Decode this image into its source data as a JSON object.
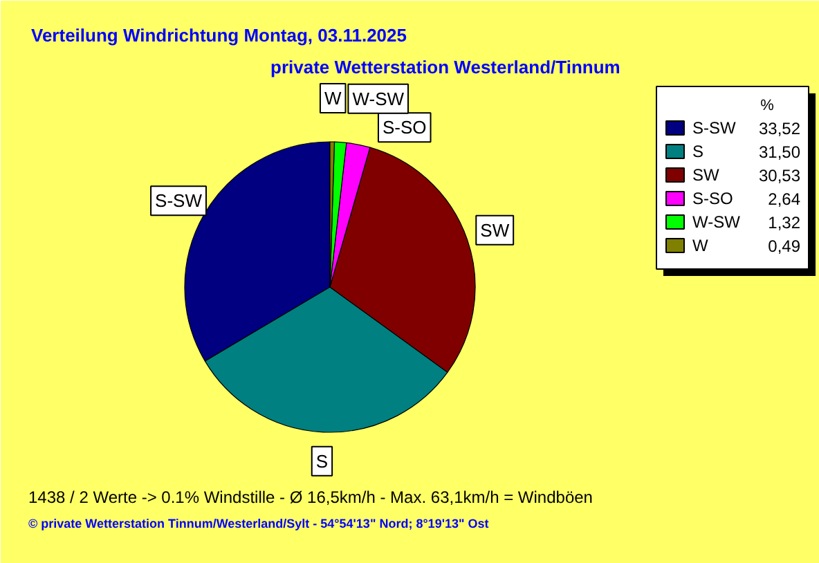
{
  "chart_data": {
    "type": "pie",
    "title": "Verteilung Windrichtung   Montag, 03.11.2025",
    "subtitle": "private Wetterstation Westerland/Tinnum",
    "categories": [
      "S-SW",
      "S",
      "SW",
      "S-SO",
      "W-SW",
      "W"
    ],
    "values": [
      33.52,
      31.5,
      30.53,
      2.64,
      1.32,
      0.49
    ],
    "value_labels": [
      "33,52",
      "31,50",
      "30,53",
      "2,64",
      "1,32",
      "0,49"
    ],
    "colors": [
      "#000080",
      "#008080",
      "#800000",
      "#ff00ff",
      "#00ff00",
      "#808000"
    ],
    "legend": "top right",
    "legend_title": "%",
    "annotations": [
      "1438 / 2 Werte  -> 0.1% Windstille   -   Ø 16,5km/h  -  Max. 63,1km/h = Windböen",
      "© private Wetterstation Tinnum/Westerland/Sylt  -  54°54'13\" Nord; 8°19'13\" Ost"
    ]
  }
}
